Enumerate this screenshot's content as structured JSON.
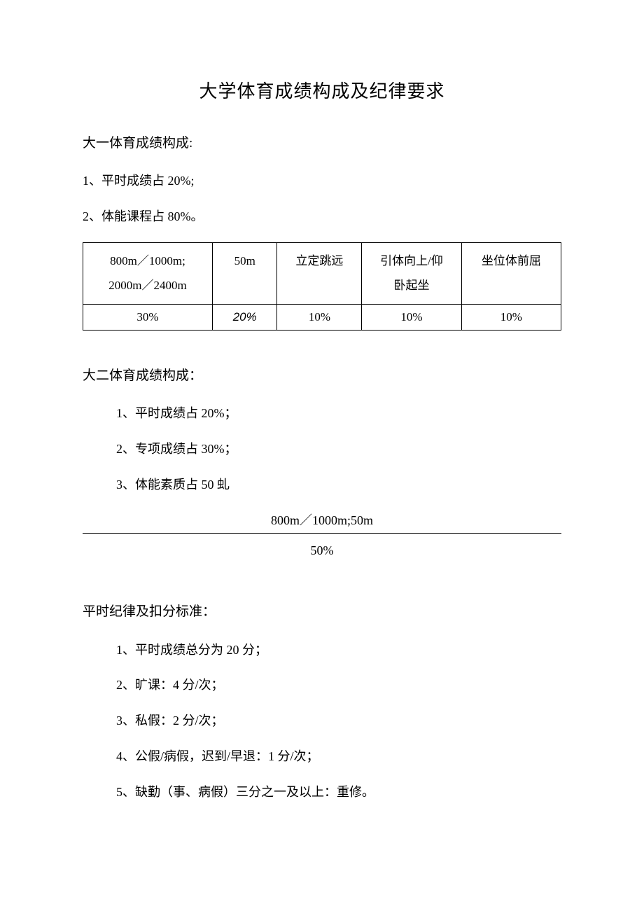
{
  "title": "大学体育成绩构成及纪律要求",
  "freshman": {
    "heading": "大一体育成绩构成:",
    "items": [
      "1、平时成绩占 20%;",
      "2、体能课程占 80%。"
    ],
    "table": {
      "columns": [
        "800m／1000m;\n2000m／2400m",
        "50m",
        "立定跳远",
        "引体向上/仰卧起坐",
        "坐位体前屈"
      ],
      "col_line1": [
        "800m／1000m;",
        "50m",
        "立定跳远",
        "引体向上/仰",
        "坐位体前屈"
      ],
      "col_line2": [
        "2000m／2400m",
        "",
        "",
        "卧起坐",
        ""
      ],
      "values": [
        "30%",
        "20%",
        "10%",
        "10%",
        "10%"
      ],
      "value_italic_index": 1,
      "border_color": "#000000",
      "col_widths_pct": [
        26,
        13,
        17,
        20,
        20
      ]
    }
  },
  "sophomore": {
    "heading": "大二体育成绩构成：",
    "items": [
      "1、平时成绩占 20%；",
      "2、专项成绩占 30%；",
      "3、体能素质占 50 虬"
    ],
    "mini": {
      "header": "800m／1000m;50m",
      "value": "50%"
    }
  },
  "discipline": {
    "heading": "平时纪律及扣分标准：",
    "items": [
      "1、平时成绩总分为 20 分；",
      "2、旷课：4 分/次；",
      "3、私假：2 分/次；",
      "4、公假/病假，迟到/早退：1 分/次；",
      "5、缺勤（事、病假）三分之一及以上：重修。"
    ]
  },
  "style": {
    "background_color": "#ffffff",
    "text_color": "#000000",
    "title_fontsize": 26,
    "body_fontsize": 18
  }
}
